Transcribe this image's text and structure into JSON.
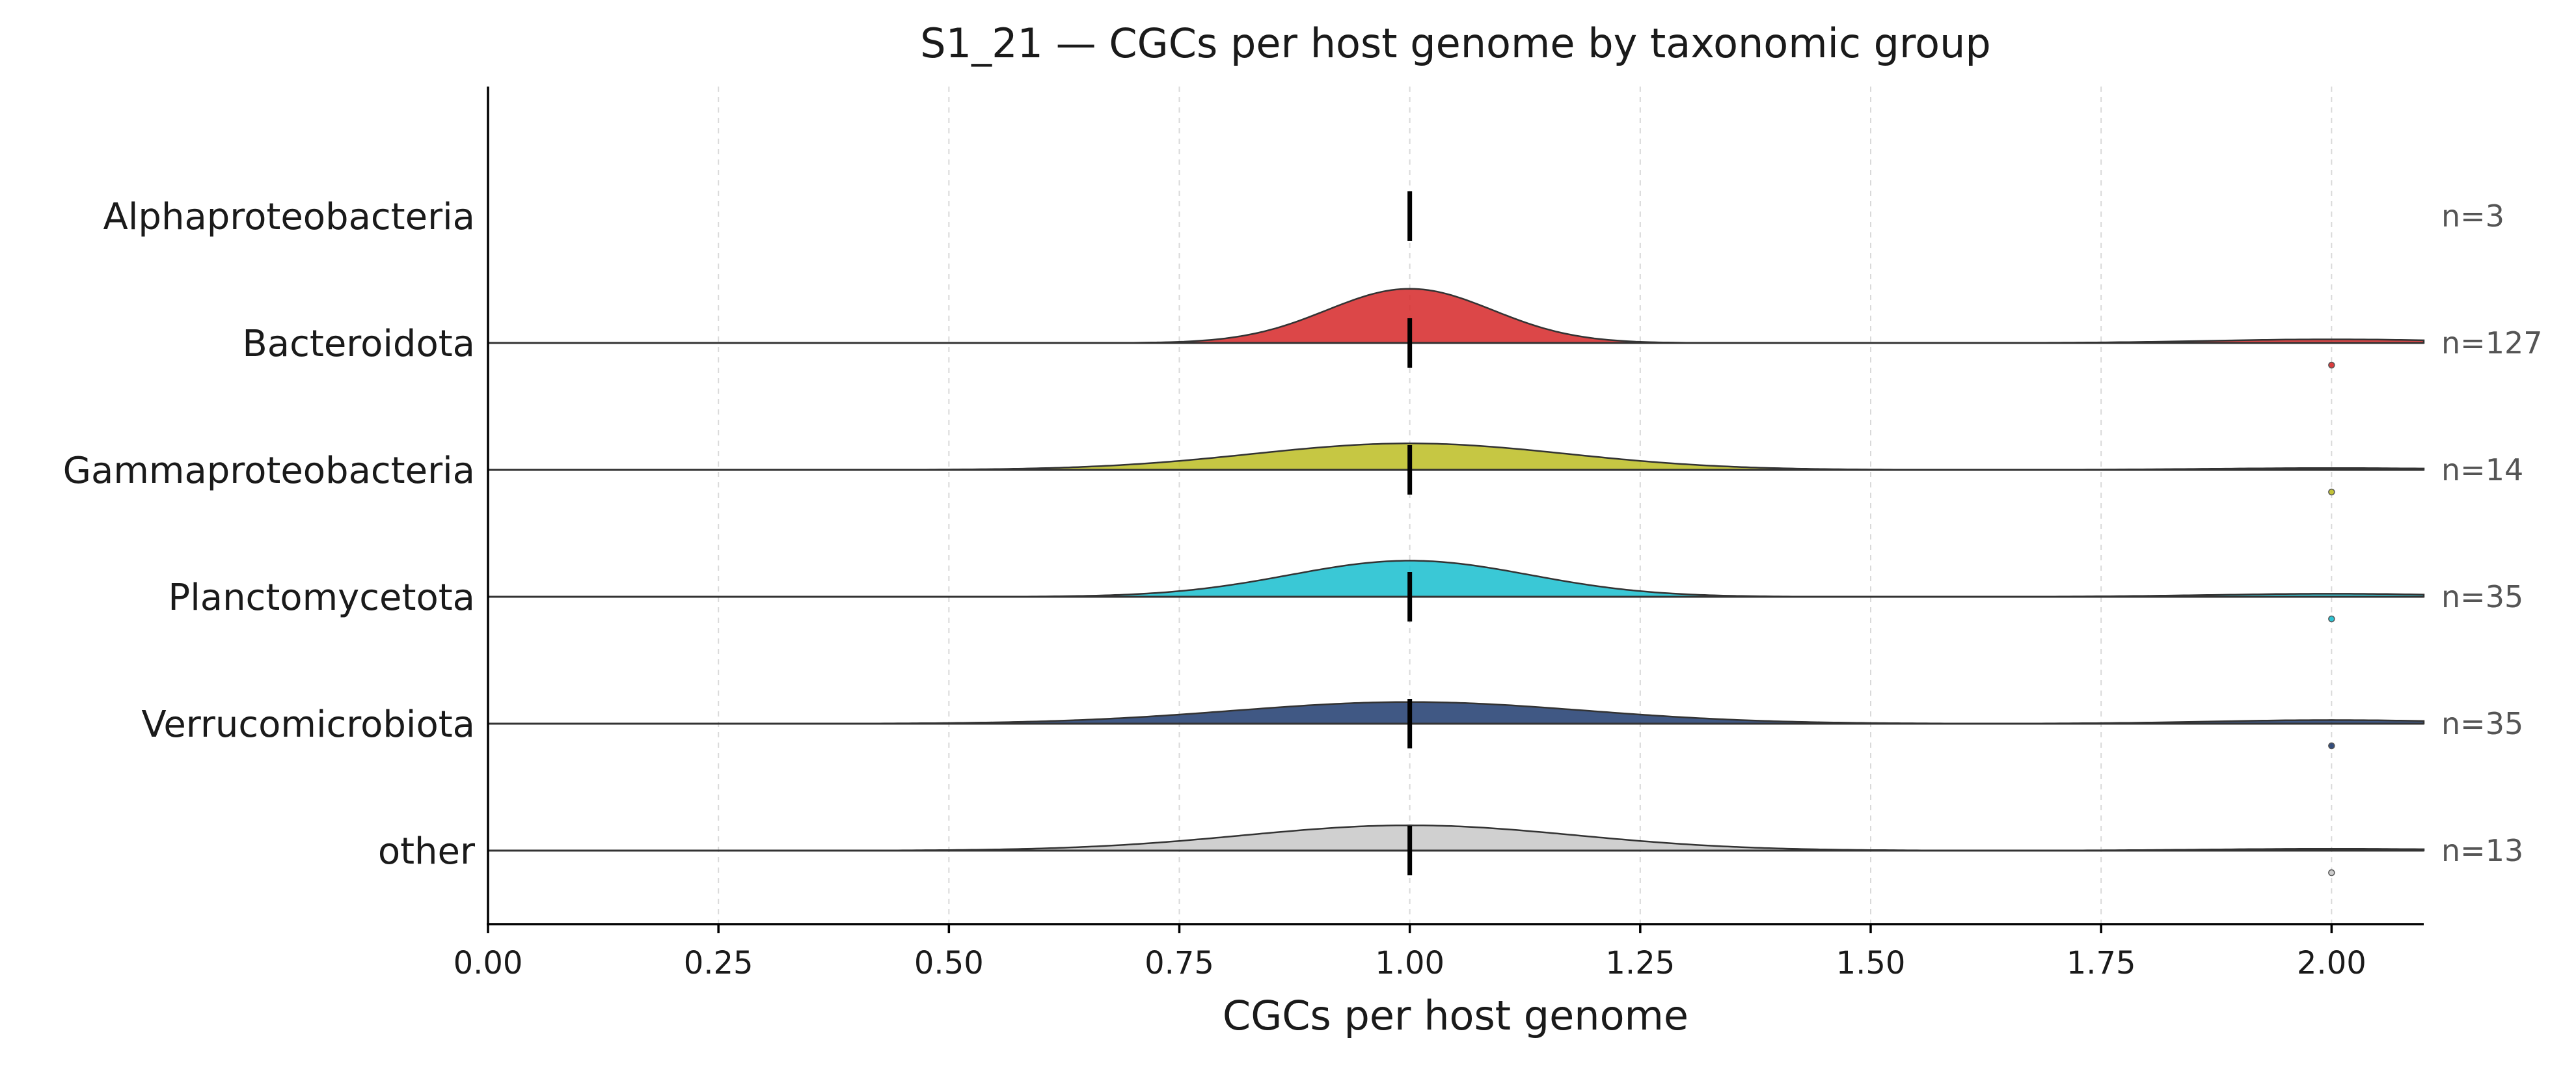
{
  "chart_data": {
    "type": "ridgeline",
    "title": "S1_21 — CGCs per host genome by taxonomic group",
    "xlabel": "CGCs per host genome",
    "ylabel": "",
    "xlim": [
      0.0,
      2.1
    ],
    "xticks": [
      0.0,
      0.25,
      0.5,
      0.75,
      1.0,
      1.25,
      1.5,
      1.75,
      2.0
    ],
    "xtick_labels": [
      "0.00",
      "0.25",
      "0.50",
      "0.75",
      "1.00",
      "1.25",
      "1.50",
      "1.75",
      "2.00"
    ],
    "grid": "vertical dashed",
    "categories": [
      "Alphaproteobacteria",
      "Bacteroidota",
      "Gammaproteobacteria",
      "Planctomycetota",
      "Verrucomicrobiota",
      "other"
    ],
    "series": [
      {
        "name": "Alphaproteobacteria",
        "n_label": "n=3",
        "n": 3,
        "median": 1.0,
        "outliers": [],
        "color": "#d62728",
        "density": false,
        "peak_height": 0.0,
        "spread": 0.0,
        "tail_height": 0.0
      },
      {
        "name": "Bacteroidota",
        "n_label": "n=127",
        "n": 127,
        "median": 1.0,
        "outliers": [
          2.0
        ],
        "color": "#d62728",
        "density": true,
        "peak_height": 0.45,
        "spread": 0.09,
        "tail_height": 0.03
      },
      {
        "name": "Gammaproteobacteria",
        "n_label": "n=14",
        "n": 14,
        "median": 1.0,
        "outliers": [
          2.0
        ],
        "color": "#bcbd22",
        "density": true,
        "peak_height": 0.22,
        "spread": 0.17,
        "tail_height": 0.015
      },
      {
        "name": "Planctomycetota",
        "n_label": "n=35",
        "n": 35,
        "median": 1.0,
        "outliers": [
          2.0
        ],
        "color": "#17becf",
        "density": true,
        "peak_height": 0.3,
        "spread": 0.13,
        "tail_height": 0.025
      },
      {
        "name": "Verrucomicrobiota",
        "n_label": "n=35",
        "n": 35,
        "median": 1.0,
        "outliers": [
          2.0
        ],
        "color": "#1f3b6f",
        "density": true,
        "peak_height": 0.18,
        "spread": 0.19,
        "tail_height": 0.03
      },
      {
        "name": "other",
        "n_label": "n=13",
        "n": 13,
        "median": 1.0,
        "outliers": [
          2.0
        ],
        "color": "#c8c8c8",
        "density": true,
        "peak_height": 0.21,
        "spread": 0.18,
        "tail_height": 0.015
      }
    ]
  },
  "colors": {
    "Bacteroidota": "#d62728",
    "Gammaproteobacteria": "#bcbd22",
    "Planctomycetota": "#17becf",
    "Verrucomicrobiota": "#1f3b6f",
    "other": "#c8c8c8"
  }
}
